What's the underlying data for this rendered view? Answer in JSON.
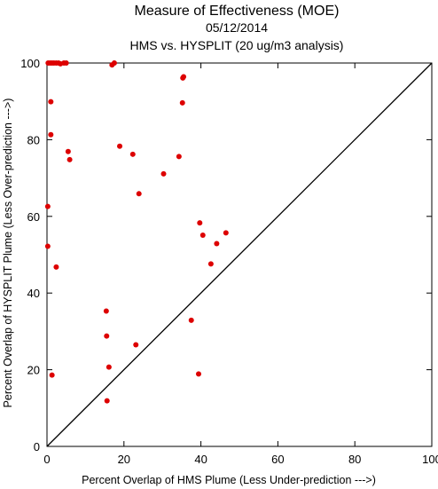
{
  "chart_data": {
    "type": "scatter",
    "title": "Measure of Effectiveness (MOE)",
    "subtitle": "05/12/2014",
    "subtitle2": "HMS vs. HYSPLIT  (20 ug/m3 analysis)",
    "xlabel": "Percent Overlap of HMS Plume (Less Under-prediction --->)",
    "ylabel": "Percent Overlap of HYSPLIT Plume (Less Over-prediction --->)",
    "xlim": [
      0,
      100
    ],
    "ylim": [
      0,
      100
    ],
    "x_ticks": [
      "0",
      "20",
      "40",
      "60",
      "80",
      "100"
    ],
    "y_ticks": [
      "0",
      "20",
      "40",
      "60",
      "80",
      "100"
    ],
    "grid": false,
    "reference_line": "y = x",
    "colors": {
      "points": "#dd0000",
      "axes": "#000000",
      "background": "#ffffff"
    },
    "points": [
      {
        "x": 0.3,
        "y": 100
      },
      {
        "x": 0.8,
        "y": 100
      },
      {
        "x": 1.3,
        "y": 100
      },
      {
        "x": 1.8,
        "y": 100
      },
      {
        "x": 2.4,
        "y": 100
      },
      {
        "x": 3.0,
        "y": 100
      },
      {
        "x": 3.5,
        "y": 99.8
      },
      {
        "x": 4.4,
        "y": 100
      },
      {
        "x": 5.0,
        "y": 100
      },
      {
        "x": 16.9,
        "y": 99.5
      },
      {
        "x": 17.5,
        "y": 100
      },
      {
        "x": 35.5,
        "y": 96.4
      },
      {
        "x": 35.3,
        "y": 96.1
      },
      {
        "x": 35.2,
        "y": 89.6
      },
      {
        "x": 1.0,
        "y": 89.9
      },
      {
        "x": 1.0,
        "y": 81.3
      },
      {
        "x": 5.5,
        "y": 76.9
      },
      {
        "x": 5.9,
        "y": 74.8
      },
      {
        "x": 18.9,
        "y": 78.3
      },
      {
        "x": 22.3,
        "y": 76.2
      },
      {
        "x": 34.3,
        "y": 75.6
      },
      {
        "x": 30.3,
        "y": 71.1
      },
      {
        "x": 23.9,
        "y": 65.9
      },
      {
        "x": 0.2,
        "y": 62.6
      },
      {
        "x": 39.7,
        "y": 58.3
      },
      {
        "x": 40.5,
        "y": 55.1
      },
      {
        "x": 46.5,
        "y": 55.7
      },
      {
        "x": 44.1,
        "y": 52.9
      },
      {
        "x": 0.2,
        "y": 52.2
      },
      {
        "x": 42.6,
        "y": 47.6
      },
      {
        "x": 2.4,
        "y": 46.8
      },
      {
        "x": 15.4,
        "y": 35.3
      },
      {
        "x": 37.5,
        "y": 32.9
      },
      {
        "x": 15.5,
        "y": 28.8
      },
      {
        "x": 23.1,
        "y": 26.5
      },
      {
        "x": 16.1,
        "y": 20.7
      },
      {
        "x": 1.3,
        "y": 18.6
      },
      {
        "x": 39.4,
        "y": 18.9
      },
      {
        "x": 15.6,
        "y": 11.9
      }
    ]
  }
}
